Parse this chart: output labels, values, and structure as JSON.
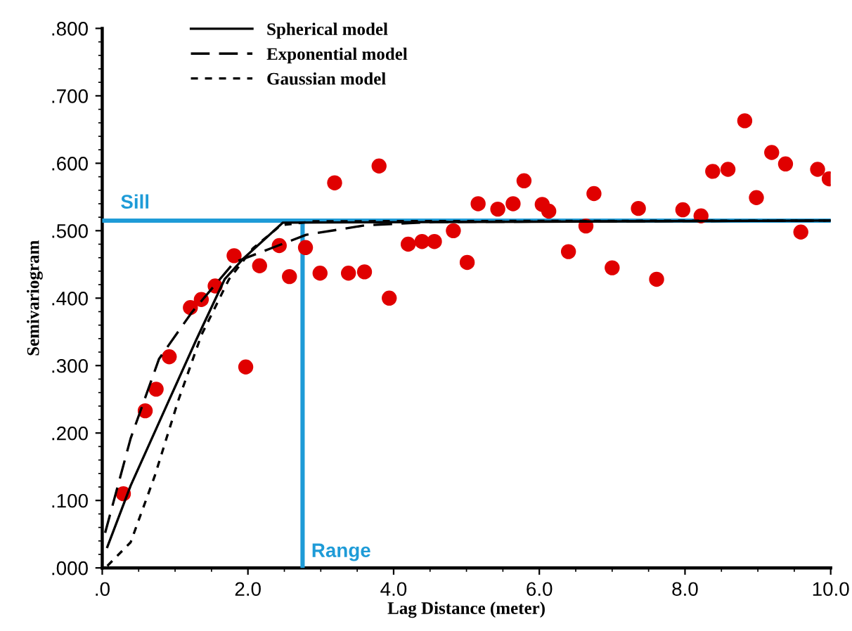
{
  "chart_data": {
    "type": "scatter",
    "xlabel": "Lag Distance (meter)",
    "ylabel": "Semivariogram",
    "xlim": [
      0,
      10
    ],
    "ylim": [
      0,
      0.8
    ],
    "xticks": [
      {
        "value": 0,
        "label": ".0"
      },
      {
        "value": 2,
        "label": "2.0"
      },
      {
        "value": 4,
        "label": "4.0"
      },
      {
        "value": 6,
        "label": "6.0"
      },
      {
        "value": 8,
        "label": "8.0"
      },
      {
        "value": 10,
        "label": "10.0"
      }
    ],
    "yticks": [
      {
        "value": 0,
        "label": ".000"
      },
      {
        "value": 0.1,
        "label": ".100"
      },
      {
        "value": 0.2,
        "label": ".200"
      },
      {
        "value": 0.3,
        "label": ".300"
      },
      {
        "value": 0.4,
        "label": ".400"
      },
      {
        "value": 0.5,
        "label": ".500"
      },
      {
        "value": 0.6,
        "label": ".600"
      },
      {
        "value": 0.7,
        "label": ".700"
      },
      {
        "value": 0.8,
        "label": ".800"
      }
    ],
    "grid": false,
    "legend": "top left",
    "series": [
      {
        "type": "line",
        "name": "Spherical model",
        "color": "#000000",
        "line_style": "solid",
        "x": [
          0.07,
          0.39,
          0.91,
          1.29,
          1.68,
          1.94,
          2.48,
          10
        ],
        "values": [
          0.031,
          0.122,
          0.247,
          0.338,
          0.428,
          0.459,
          0.512,
          0.515
        ]
      },
      {
        "type": "line",
        "name": "Exponential model",
        "color": "#000000",
        "line_style": "dashed",
        "x": [
          0.04,
          0.39,
          0.78,
          1.23,
          1.81,
          2.32,
          2.8,
          3.61,
          4.57,
          10
        ],
        "values": [
          0.052,
          0.192,
          0.31,
          0.379,
          0.453,
          0.474,
          0.494,
          0.508,
          0.513,
          0.515
        ]
      },
      {
        "type": "line",
        "name": "Gaussian model",
        "color": "#000000",
        "line_style": "dotted",
        "x": [
          0.07,
          0.39,
          0.72,
          1.04,
          1.36,
          1.74,
          2.07,
          2.45,
          2.9,
          10
        ],
        "values": [
          0.003,
          0.038,
          0.136,
          0.247,
          0.345,
          0.428,
          0.474,
          0.508,
          0.514,
          0.515
        ]
      },
      {
        "color": "#e00000",
        "marker": "circle",
        "x": [
          0.29,
          0.59,
          0.74,
          0.92,
          1.21,
          1.36,
          1.55,
          1.81,
          1.97,
          2.16,
          2.43,
          2.57,
          2.79,
          2.99,
          3.19,
          3.38,
          3.6,
          3.8,
          3.94,
          4.2,
          4.39,
          4.56,
          4.82,
          5.01,
          5.16,
          5.43,
          5.64,
          5.79,
          6.04,
          6.13,
          6.4,
          6.64,
          6.75,
          7.0,
          7.36,
          7.61,
          7.97,
          8.22,
          8.38,
          8.59,
          8.82,
          8.98,
          9.19,
          9.38,
          9.59,
          9.82,
          9.98
        ],
        "values": [
          0.11,
          0.233,
          0.265,
          0.313,
          0.386,
          0.398,
          0.418,
          0.463,
          0.298,
          0.448,
          0.478,
          0.432,
          0.475,
          0.437,
          0.571,
          0.437,
          0.439,
          0.596,
          0.4,
          0.48,
          0.484,
          0.484,
          0.5,
          0.453,
          0.54,
          0.532,
          0.54,
          0.574,
          0.539,
          0.529,
          0.469,
          0.507,
          0.555,
          0.445,
          0.533,
          0.428,
          0.531,
          0.522,
          0.588,
          0.591,
          0.663,
          0.549,
          0.616,
          0.599,
          0.498,
          0.591,
          0.577
        ]
      }
    ],
    "ref_lines": [
      {
        "axis": "y",
        "value": 0.515,
        "label": "Sill",
        "color": "#1e9bd7"
      },
      {
        "axis": "x",
        "value": 2.75,
        "label": "Range",
        "color": "#1e9bd7"
      }
    ]
  }
}
